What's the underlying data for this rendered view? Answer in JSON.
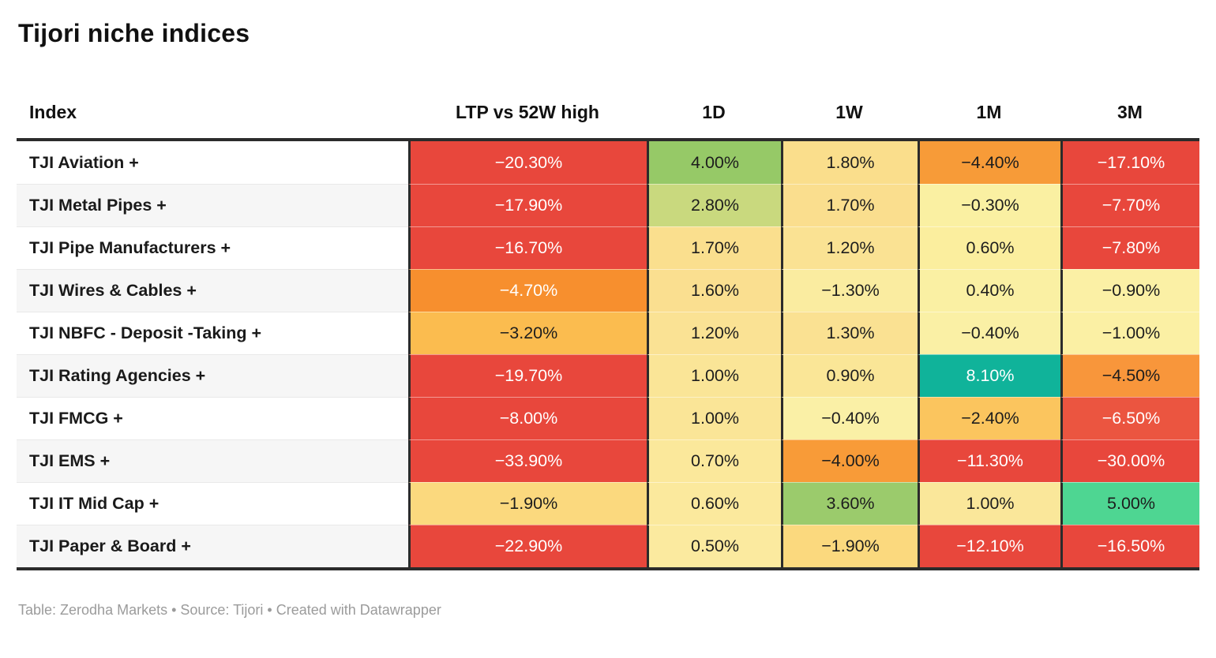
{
  "title": "Tijori niche indices",
  "footer": "Table: Zerodha Markets • Source: Tijori • Created with Datawrapper",
  "colors": {
    "strong_negative": "#e8473c",
    "negative_orange": "#f89b38",
    "mild_negative": "#fbc55e",
    "neutral_yellow": "#faf0a4",
    "mild_positive": "#fadf8e",
    "positive_green": "#96c967",
    "strong_positive_teal": "#10b39a",
    "header_border": "#2b2b2b",
    "text_dark": "#1d1d1d",
    "text_light": "#ffffff"
  },
  "chart_data": {
    "type": "table",
    "title": "Tijori niche indices",
    "columns": [
      "Index",
      "LTP vs 52W high",
      "1D",
      "1W",
      "1M",
      "3M"
    ],
    "legend_position": "none",
    "grid": "heatmap-cells",
    "rows": [
      {
        "label": "TJI Aviation +",
        "values_pct": [
          -20.3,
          4.0,
          1.8,
          -4.4,
          -17.1
        ],
        "cells": [
          {
            "text": "−20.30%",
            "bg": "#e8473c",
            "fg": "#ffffff"
          },
          {
            "text": "4.00%",
            "bg": "#96c967",
            "fg": "#1d1d1d"
          },
          {
            "text": "1.80%",
            "bg": "#fade8c",
            "fg": "#1d1d1d"
          },
          {
            "text": "−4.40%",
            "bg": "#f79b38",
            "fg": "#1d1d1d"
          },
          {
            "text": "−17.10%",
            "bg": "#e8473c",
            "fg": "#ffffff"
          }
        ]
      },
      {
        "label": "TJI Metal Pipes +",
        "values_pct": [
          -17.9,
          2.8,
          1.7,
          -0.3,
          -7.7
        ],
        "cells": [
          {
            "text": "−17.90%",
            "bg": "#e8473c",
            "fg": "#ffffff"
          },
          {
            "text": "2.80%",
            "bg": "#c9d97e",
            "fg": "#1d1d1d"
          },
          {
            "text": "1.70%",
            "bg": "#fade8e",
            "fg": "#1d1d1d"
          },
          {
            "text": "−0.30%",
            "bg": "#faf0a2",
            "fg": "#1d1d1d"
          },
          {
            "text": "−7.70%",
            "bg": "#e8473c",
            "fg": "#ffffff"
          }
        ]
      },
      {
        "label": "TJI Pipe Manufacturers +",
        "values_pct": [
          -16.7,
          1.7,
          1.2,
          0.6,
          -7.8
        ],
        "cells": [
          {
            "text": "−16.70%",
            "bg": "#e8473c",
            "fg": "#ffffff"
          },
          {
            "text": "1.70%",
            "bg": "#fadf8e",
            "fg": "#1d1d1d"
          },
          {
            "text": "1.20%",
            "bg": "#fae293",
            "fg": "#1d1d1d"
          },
          {
            "text": "0.60%",
            "bg": "#fbee9e",
            "fg": "#1d1d1d"
          },
          {
            "text": "−7.80%",
            "bg": "#e8473c",
            "fg": "#ffffff"
          }
        ]
      },
      {
        "label": "TJI Wires & Cables +",
        "values_pct": [
          -4.7,
          1.6,
          -1.3,
          0.4,
          -0.9
        ],
        "cells": [
          {
            "text": "−4.70%",
            "bg": "#f78f2e",
            "fg": "#ffffff"
          },
          {
            "text": "1.60%",
            "bg": "#fadf90",
            "fg": "#1d1d1d"
          },
          {
            "text": "−1.30%",
            "bg": "#faeca0",
            "fg": "#1d1d1d"
          },
          {
            "text": "0.40%",
            "bg": "#faf0a3",
            "fg": "#1d1d1d"
          },
          {
            "text": "−0.90%",
            "bg": "#fbf0a5",
            "fg": "#1d1d1d"
          }
        ]
      },
      {
        "label": "TJI NBFC - Deposit -Taking +",
        "values_pct": [
          -3.2,
          1.2,
          1.3,
          -0.4,
          -1.0
        ],
        "cells": [
          {
            "text": "−3.20%",
            "bg": "#fbbc4f",
            "fg": "#1d1d1d"
          },
          {
            "text": "1.20%",
            "bg": "#fae294",
            "fg": "#1d1d1d"
          },
          {
            "text": "1.30%",
            "bg": "#fae192",
            "fg": "#1d1d1d"
          },
          {
            "text": "−0.40%",
            "bg": "#faf0a5",
            "fg": "#1d1d1d"
          },
          {
            "text": "−1.00%",
            "bg": "#fbf0a4",
            "fg": "#1d1d1d"
          }
        ]
      },
      {
        "label": "TJI Rating Agencies +",
        "values_pct": [
          -19.7,
          1.0,
          0.9,
          8.1,
          -4.5
        ],
        "cells": [
          {
            "text": "−19.70%",
            "bg": "#e8473c",
            "fg": "#ffffff"
          },
          {
            "text": "1.00%",
            "bg": "#fae597",
            "fg": "#1d1d1d"
          },
          {
            "text": "0.90%",
            "bg": "#fae697",
            "fg": "#1d1d1d"
          },
          {
            "text": "8.10%",
            "bg": "#10b39a",
            "fg": "#ffffff"
          },
          {
            "text": "−4.50%",
            "bg": "#f8963b",
            "fg": "#1d1d1d"
          }
        ]
      },
      {
        "label": "TJI FMCG +",
        "values_pct": [
          -8.0,
          1.0,
          -0.4,
          -2.4,
          -6.5
        ],
        "cells": [
          {
            "text": "−8.00%",
            "bg": "#e8473c",
            "fg": "#ffffff"
          },
          {
            "text": "1.00%",
            "bg": "#fae597",
            "fg": "#1d1d1d"
          },
          {
            "text": "−0.40%",
            "bg": "#faf0a6",
            "fg": "#1d1d1d"
          },
          {
            "text": "−2.40%",
            "bg": "#fbc55e",
            "fg": "#1d1d1d"
          },
          {
            "text": "−6.50%",
            "bg": "#eb5540",
            "fg": "#ffffff"
          }
        ]
      },
      {
        "label": "TJI EMS +",
        "values_pct": [
          -33.9,
          0.7,
          -4.0,
          -11.3,
          -30.0
        ],
        "cells": [
          {
            "text": "−33.90%",
            "bg": "#e8473c",
            "fg": "#ffffff"
          },
          {
            "text": "0.70%",
            "bg": "#fbe89b",
            "fg": "#1d1d1d"
          },
          {
            "text": "−4.00%",
            "bg": "#f89b38",
            "fg": "#1d1d1d"
          },
          {
            "text": "−11.30%",
            "bg": "#e8473c",
            "fg": "#ffffff"
          },
          {
            "text": "−30.00%",
            "bg": "#e8473c",
            "fg": "#ffffff"
          }
        ]
      },
      {
        "label": "TJI IT Mid Cap +",
        "values_pct": [
          -1.9,
          0.6,
          3.6,
          1.0,
          5.0
        ],
        "cells": [
          {
            "text": "−1.90%",
            "bg": "#fbd97e",
            "fg": "#1d1d1d"
          },
          {
            "text": "0.60%",
            "bg": "#fbe99d",
            "fg": "#1d1d1d"
          },
          {
            "text": "3.60%",
            "bg": "#9bcb6c",
            "fg": "#1d1d1d"
          },
          {
            "text": "1.00%",
            "bg": "#fae79a",
            "fg": "#1d1d1d"
          },
          {
            "text": "5.00%",
            "bg": "#4ed692",
            "fg": "#1d1d1d"
          }
        ]
      },
      {
        "label": "TJI Paper & Board +",
        "values_pct": [
          -22.9,
          0.5,
          -1.9,
          -12.1,
          -16.5
        ],
        "cells": [
          {
            "text": "−22.90%",
            "bg": "#e8473c",
            "fg": "#ffffff"
          },
          {
            "text": "0.50%",
            "bg": "#fbea9f",
            "fg": "#1d1d1d"
          },
          {
            "text": "−1.90%",
            "bg": "#fbd97e",
            "fg": "#1d1d1d"
          },
          {
            "text": "−12.10%",
            "bg": "#e8473c",
            "fg": "#ffffff"
          },
          {
            "text": "−16.50%",
            "bg": "#e8473c",
            "fg": "#ffffff"
          }
        ]
      }
    ]
  }
}
